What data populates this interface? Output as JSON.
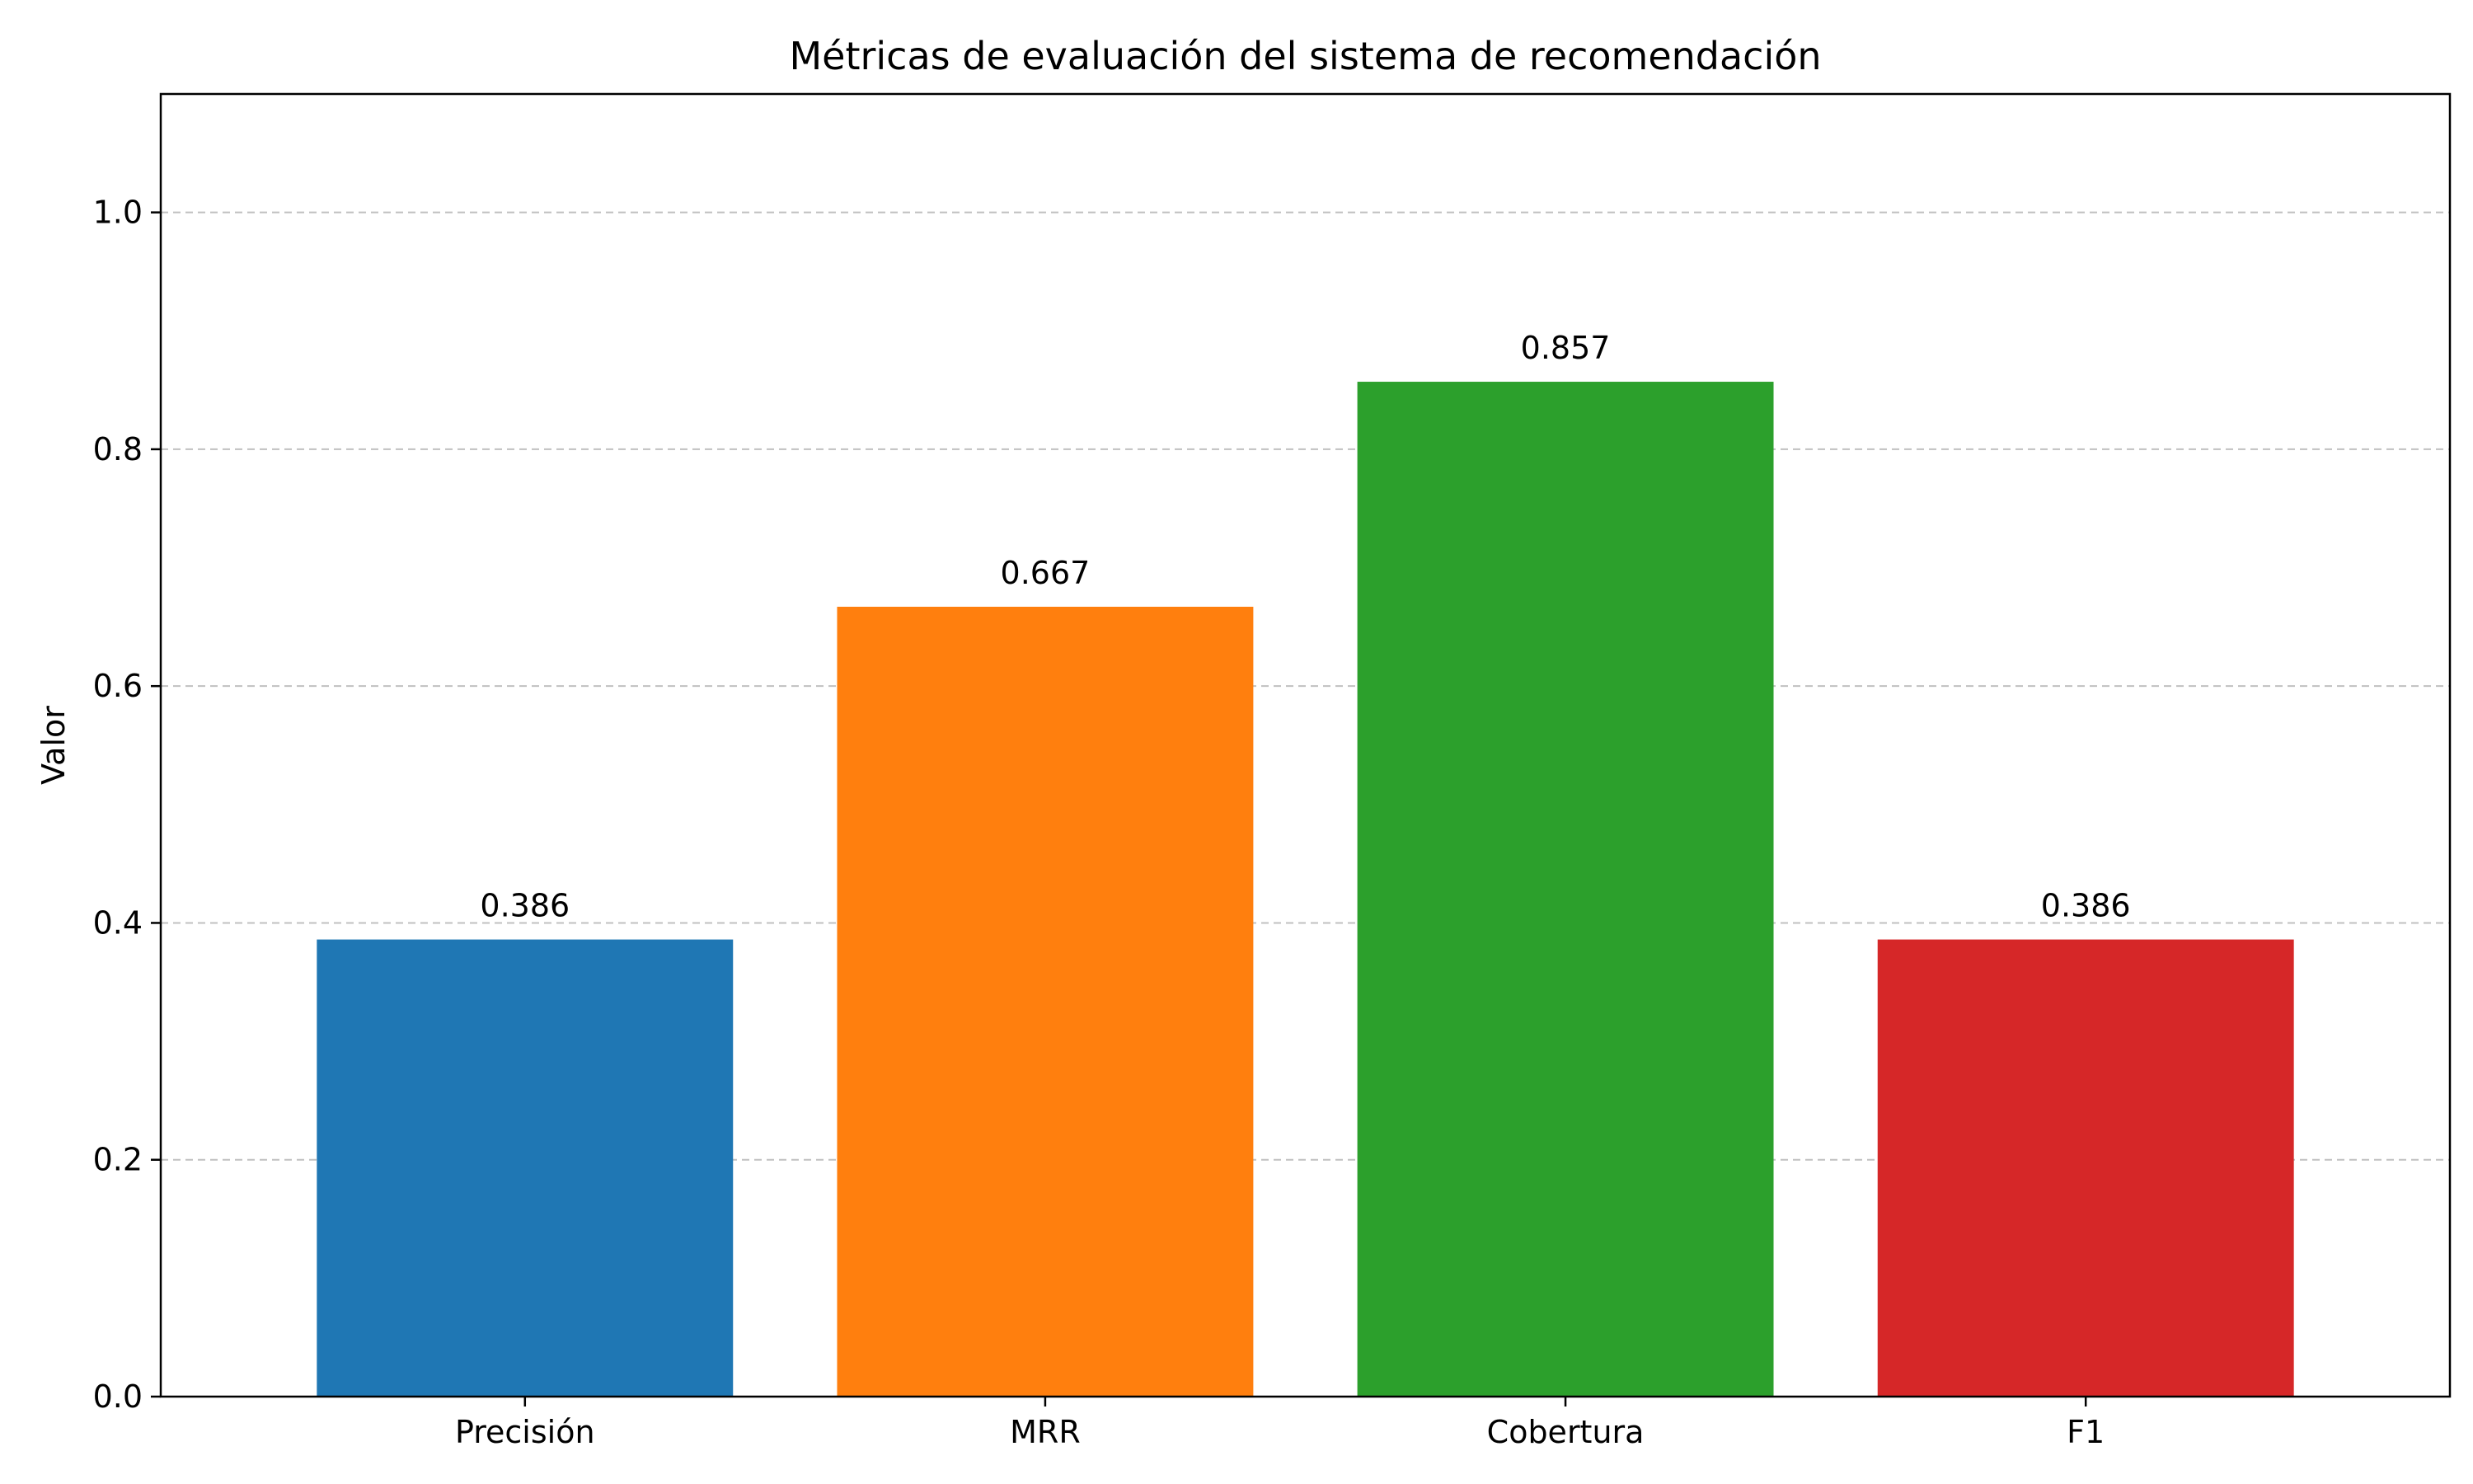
{
  "chart_data": {
    "type": "bar",
    "title": "Métricas de evaluación del sistema de recomendación",
    "xlabel": "",
    "ylabel": "Valor",
    "categories": [
      "Precisión",
      "MRR",
      "Cobertura",
      "F1"
    ],
    "values": [
      0.386,
      0.667,
      0.857,
      0.386
    ],
    "value_labels": [
      "0.386",
      "0.667",
      "0.857",
      "0.386"
    ],
    "colors": [
      "#1f77b4",
      "#ff7f0e",
      "#2ca02c",
      "#d62728"
    ],
    "ylim": [
      0,
      1.1
    ],
    "yticks": [
      0.0,
      0.2,
      0.4,
      0.6,
      0.8,
      1.0
    ],
    "ytick_labels": [
      "0.0",
      "0.2",
      "0.4",
      "0.6",
      "0.8",
      "1.0"
    ],
    "grid": {
      "axis": "y",
      "style": "dashed",
      "color": "#c0c0c0"
    },
    "legend": "none"
  }
}
